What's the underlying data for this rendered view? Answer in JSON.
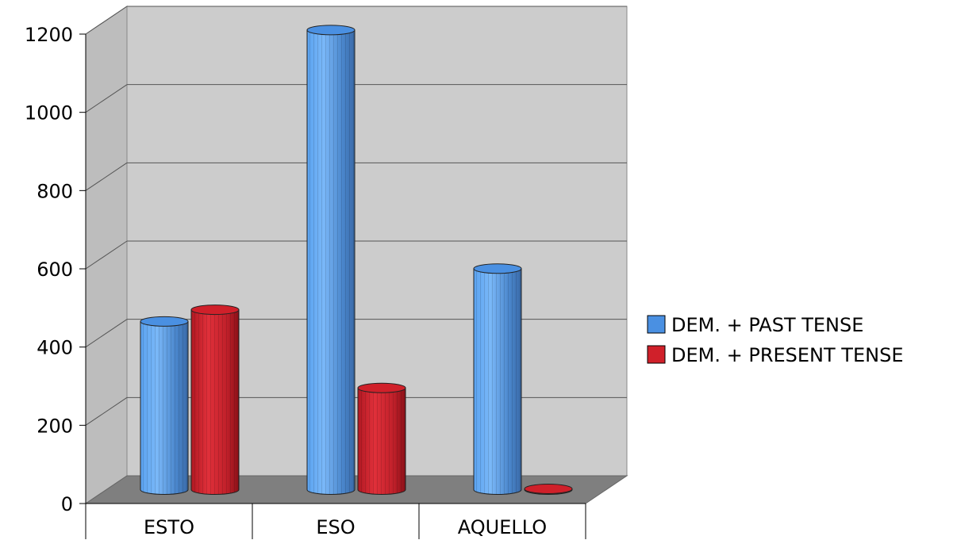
{
  "chart_data": {
    "type": "bar",
    "style": "3d-cylinder",
    "categories": [
      "ESTO",
      "ESO",
      "AQUELLO"
    ],
    "series": [
      {
        "name": "DEM. + PAST TENSE",
        "color": "#4a90e2",
        "values": [
          430,
          1175,
          565
        ]
      },
      {
        "name": "DEM. + PRESENT TENSE",
        "color": "#d0202a",
        "values": [
          460,
          260,
          2
        ]
      }
    ],
    "yticks": [
      "0",
      "200",
      "400",
      "600",
      "800",
      "1000",
      "1200"
    ],
    "ylim": [
      0,
      1200
    ],
    "grid": true,
    "legend_position": "right",
    "title": "",
    "xlabel": "",
    "ylabel": ""
  }
}
